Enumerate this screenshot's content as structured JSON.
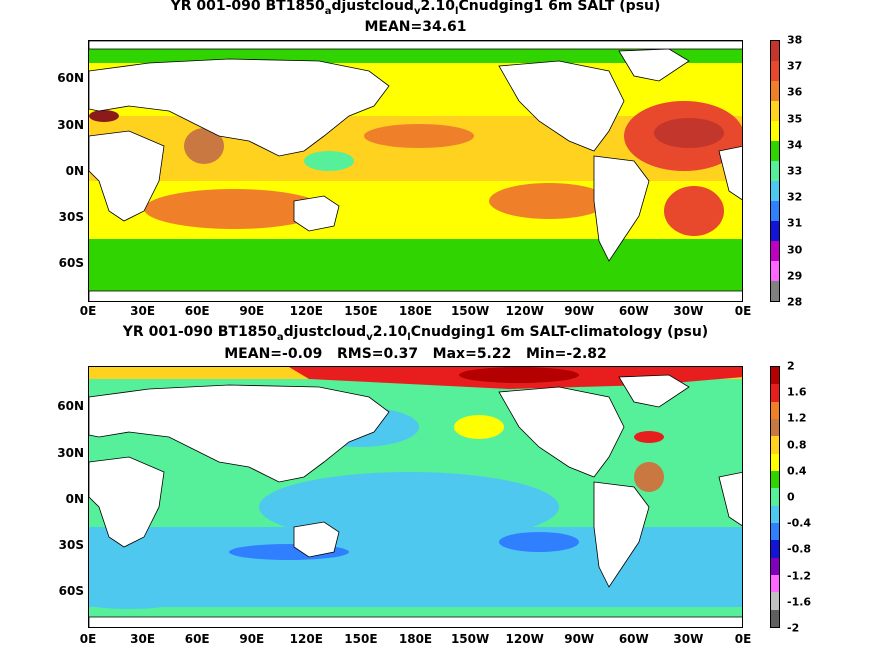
{
  "top": {
    "title_parts": [
      "YR 001-090 BT1850",
      "a",
      "djustcloud",
      "v",
      "2.10",
      "l",
      "Cnudging1 6m SALT (psu)"
    ],
    "stats": "MEAN=34.61",
    "colorbar_labels": [
      "38",
      "37",
      "36",
      "35",
      "34",
      "33",
      "32",
      "31",
      "30",
      "29",
      "28"
    ],
    "colorbar_colors": [
      "#c2362b",
      "#e8482c",
      "#f07f2a",
      "#ffd21f",
      "#ffff00",
      "#30d400",
      "#55f099",
      "#4fc8ef",
      "#2f7fff",
      "#1414d8",
      "#c000c0",
      "#ff66ff",
      "#808080"
    ]
  },
  "bottom": {
    "title_parts": [
      "YR 001-090 BT1850",
      "a",
      "djustcloud",
      "v",
      "2.10",
      "l",
      "Cnudging1 6m SALT-climatology (psu)"
    ],
    "stats": "MEAN=-0.09   RMS=0.37   Max=5.22   Min=-2.82",
    "colorbar_labels": [
      "2",
      "1.6",
      "1.2",
      "0.8",
      "0.4",
      "0",
      "-0.4",
      "-0.8",
      "-1.2",
      "-1.6",
      "-2"
    ],
    "colorbar_colors": [
      "#b40000",
      "#e81e1e",
      "#f07f2a",
      "#c87840",
      "#ffd21f",
      "#ffff00",
      "#30d400",
      "#55f099",
      "#4fc8ef",
      "#2f7fff",
      "#1414d8",
      "#8000c0",
      "#ff66ff",
      "#c0c0c0",
      "#606060"
    ]
  },
  "axes": {
    "x_ticks": [
      "0E",
      "30E",
      "60E",
      "90E",
      "120E",
      "150E",
      "180E",
      "150W",
      "120W",
      "90W",
      "60W",
      "30W",
      "0E"
    ],
    "y_ticks": [
      "60N",
      "30N",
      "0N",
      "30S",
      "60S"
    ]
  }
}
